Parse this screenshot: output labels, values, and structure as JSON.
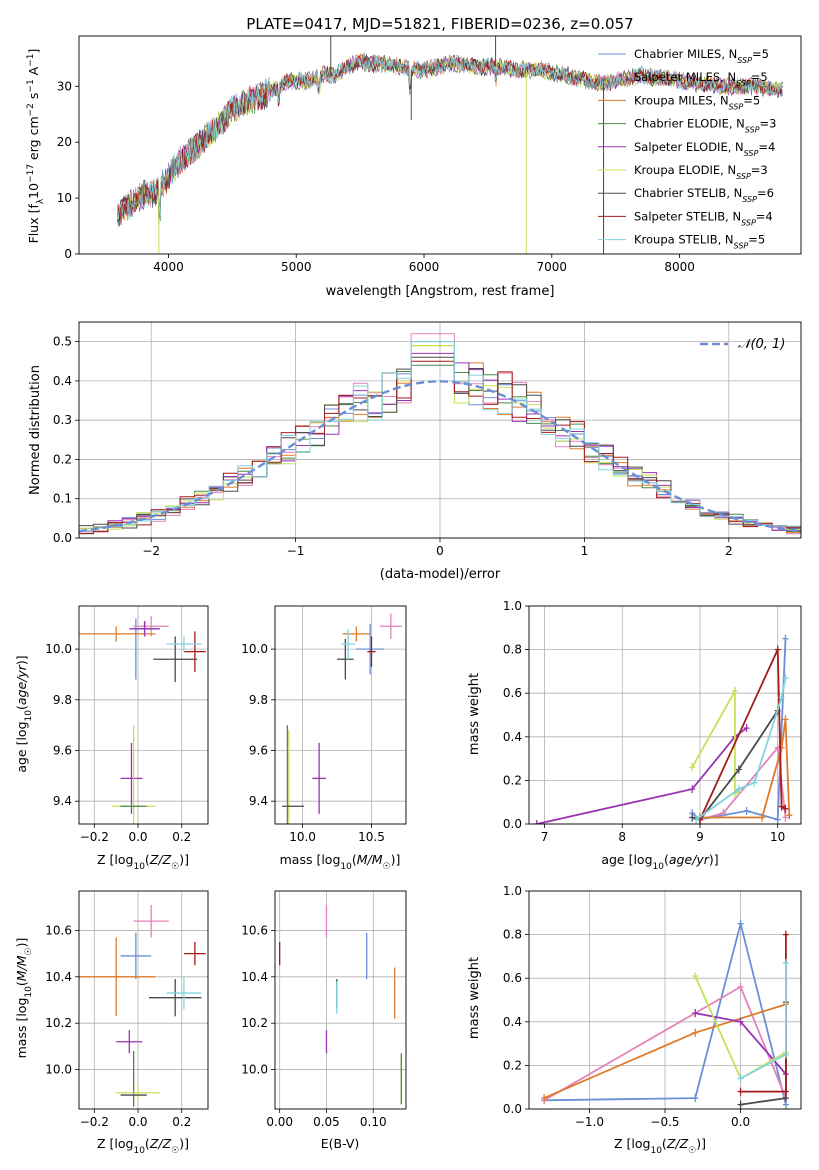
{
  "chart_data": [
    {
      "id": "spectrum",
      "type": "line",
      "title": "PLATE=0417, MJD=51821, FIBERID=0236, z=0.057",
      "xlabel": "wavelength [Angstrom, rest frame]",
      "ylabel": "Flux [f_λ10^-17 erg cm^-2 s^-1 A^-1]",
      "xlim": [
        3300,
        8950
      ],
      "ylim": [
        0,
        39
      ],
      "xticks": [
        4000,
        5000,
        6000,
        7000,
        8000
      ],
      "yticks": [
        0,
        10,
        20,
        30
      ],
      "grid": false,
      "legend_position": "top-right",
      "continuum_wavelengths": [
        3600,
        3700,
        3800,
        3900,
        4000,
        4100,
        4200,
        4300,
        4400,
        4500,
        4600,
        4700,
        4800,
        4900,
        5000,
        5100,
        5200,
        5300,
        5400,
        5500,
        5600,
        5700,
        5800,
        5900,
        6000,
        6100,
        6200,
        6300,
        6400,
        6500,
        6600,
        6700,
        6800,
        6900,
        7000,
        7100,
        7200,
        7300,
        7400,
        7500,
        7600,
        7700,
        7800,
        7900,
        8000,
        8100,
        8200,
        8300,
        8400,
        8500,
        8600,
        8700,
        8800
      ],
      "continuum_flux": [
        7,
        9,
        10.5,
        11,
        14,
        17,
        19,
        21,
        23,
        26,
        27,
        28,
        29,
        30.5,
        31,
        31,
        32,
        32,
        33.5,
        34.5,
        34,
        34,
        33.5,
        33,
        33,
        33.5,
        34,
        34,
        33.5,
        33.5,
        33.5,
        33,
        33,
        33,
        32.5,
        32,
        31.5,
        31,
        30.5,
        31,
        31.5,
        32,
        31.5,
        31.5,
        31,
        30.5,
        30.5,
        30,
        30,
        30,
        30,
        29.5,
        29.5
      ],
      "series": [
        {
          "name": "Chabrier MILES, N_SSP=5",
          "label_main": "Chabrier MILES, N",
          "label_sub": "SSP",
          "label_tail": "=5",
          "color": "#6a8fd6"
        },
        {
          "name": "Salpeter MILES, N_SSP=5",
          "label_main": "Salpeter MILES, N",
          "label_sub": "SSP",
          "label_tail": "=5",
          "color": "#e382bb"
        },
        {
          "name": "Kroupa MILES, N_SSP=5",
          "label_main": "Kroupa MILES, N",
          "label_sub": "SSP",
          "label_tail": "=5",
          "color": "#de7a2a"
        },
        {
          "name": "Chabrier ELODIE, N_SSP=3",
          "label_main": "Chabrier ELODIE, N",
          "label_sub": "SSP",
          "label_tail": "=3",
          "color": "#4a8a4a"
        },
        {
          "name": "Salpeter ELODIE, N_SSP=4",
          "label_main": "Salpeter ELODIE, N",
          "label_sub": "SSP",
          "label_tail": "=4",
          "color": "#9a34b6"
        },
        {
          "name": "Kroupa ELODIE, N_SSP=3",
          "label_main": "Kroupa ELODIE, N",
          "label_sub": "SSP",
          "label_tail": "=3",
          "color": "#c8e05a"
        },
        {
          "name": "Chabrier STELIB, N_SSP=6",
          "label_main": "Chabrier STELIB, N",
          "label_sub": "SSP",
          "label_tail": "=6",
          "color": "#4a4a4a"
        },
        {
          "name": "Salpeter STELIB, N_SSP=4",
          "label_main": "Salpeter STELIB, N",
          "label_sub": "SSP",
          "label_tail": "=4",
          "color": "#a31b1b"
        },
        {
          "name": "Kroupa STELIB, N_SSP=5",
          "label_main": "Kroupa STELIB, N",
          "label_sub": "SSP",
          "label_tail": "=5",
          "color": "#83d4dd"
        }
      ]
    },
    {
      "id": "residuals",
      "type": "histogram",
      "xlabel": "(data-model)/error",
      "ylabel": "Normed distribution",
      "xlim": [
        -2.5,
        2.5
      ],
      "ylim": [
        0,
        0.55
      ],
      "xticks": [
        -2,
        -1,
        0,
        1,
        2
      ],
      "yticks": [
        0.0,
        0.1,
        0.2,
        0.3,
        0.4,
        0.5
      ],
      "grid": true,
      "legend_position": "top-right",
      "bins": 50,
      "reference_curve": {
        "name": "N(0,1)",
        "label_math": "𝒩(0, 1)",
        "color": "#6a8fd6",
        "dash": true,
        "mean": 0,
        "sigma": 1
      },
      "peak_values": [
        0.5,
        0.52,
        0.49,
        0.44,
        0.47,
        0.49,
        0.46,
        0.45,
        0.5
      ]
    },
    {
      "id": "age_vs_Z",
      "type": "scatter",
      "xlabel": "Z [log10(Z/Z☉)]",
      "ylabel": "age [log10(age/yr)]",
      "xlim": [
        -0.27,
        0.32
      ],
      "ylim": [
        9.31,
        10.17
      ],
      "xticks": [
        -0.2,
        0.0,
        0.2
      ],
      "yticks": [
        9.4,
        9.6,
        9.8,
        10.0
      ],
      "grid": true,
      "points": [
        {
          "color": "#6a8fd6",
          "x": -0.01,
          "y": 10.0,
          "xerr": 0.0,
          "yerr": 0.12
        },
        {
          "color": "#e382bb",
          "x": 0.06,
          "y": 10.09,
          "xerr": 0.08,
          "yerr": 0.04
        },
        {
          "color": "#de7a2a",
          "x": -0.1,
          "y": 10.06,
          "xerr": 0.18,
          "yerr": 0.03
        },
        {
          "color": "#4a8a4a",
          "x": 0.03,
          "y": 10.08,
          "xerr": 0.05,
          "yerr": 0.03
        },
        {
          "color": "#9a34b6",
          "x": 0.03,
          "y": 10.08,
          "xerr": 0.07,
          "yerr": 0.03
        },
        {
          "color": "#9a34b6",
          "x": -0.03,
          "y": 9.49,
          "xerr": 0.05,
          "yerr": 0.14
        },
        {
          "color": "#c8e05a",
          "x": -0.02,
          "y": 9.38,
          "xerr": 0.1,
          "yerr": 0.32
        },
        {
          "color": "#4a4a4a",
          "x": 0.17,
          "y": 9.96,
          "xerr": 0.1,
          "yerr": 0.09
        },
        {
          "color": "#a31b1b",
          "x": 0.26,
          "y": 9.99,
          "xerr": 0.05,
          "yerr": 0.08
        },
        {
          "color": "#83d4dd",
          "x": 0.21,
          "y": 10.02,
          "xerr": 0.08,
          "yerr": 0.03
        },
        {
          "color": "#4a8a4a",
          "x": -0.02,
          "y": 9.38,
          "xerr": 0.06,
          "yerr": 0.0
        }
      ]
    },
    {
      "id": "age_vs_mass",
      "type": "scatter",
      "xlabel": "mass [log10(M/M☉)]",
      "ylabel": "",
      "xlim": [
        9.8,
        10.75
      ],
      "ylim": [
        9.31,
        10.17
      ],
      "xticks": [
        10.0,
        10.5
      ],
      "yticks": [
        9.4,
        9.6,
        9.8,
        10.0
      ],
      "grid": true,
      "points": [
        {
          "color": "#6a8fd6",
          "x": 10.49,
          "y": 10.0,
          "xerr": 0.1,
          "yerr": 0.1
        },
        {
          "color": "#e382bb",
          "x": 10.64,
          "y": 10.09,
          "xerr": 0.08,
          "yerr": 0.05
        },
        {
          "color": "#de7a2a",
          "x": 10.39,
          "y": 10.06,
          "xerr": 0.1,
          "yerr": 0.03
        },
        {
          "color": "#4a8a4a",
          "x": 9.89,
          "y": 9.38,
          "xerr": 0.0,
          "yerr": 0.32
        },
        {
          "color": "#9a34b6",
          "x": 10.12,
          "y": 9.49,
          "xerr": 0.05,
          "yerr": 0.14
        },
        {
          "color": "#c8e05a",
          "x": 9.9,
          "y": 9.38,
          "xerr": 0.02,
          "yerr": 0.3
        },
        {
          "color": "#4a4a4a",
          "x": 10.31,
          "y": 9.96,
          "xerr": 0.06,
          "yerr": 0.08
        },
        {
          "color": "#a31b1b",
          "x": 10.5,
          "y": 9.99,
          "xerr": 0.03,
          "yerr": 0.06
        },
        {
          "color": "#83d4dd",
          "x": 10.33,
          "y": 10.02,
          "xerr": 0.05,
          "yerr": 0.06
        },
        {
          "color": "#4a4a4a",
          "x": 9.93,
          "y": 9.38,
          "xerr": 0.08,
          "yerr": 0.0
        }
      ]
    },
    {
      "id": "mass_weight_vs_age",
      "type": "line",
      "xlabel": "age [log10(age/yr)]",
      "ylabel": "mass weight",
      "xlim": [
        6.8,
        10.3
      ],
      "ylim": [
        0.0,
        1.0
      ],
      "xticks": [
        7,
        8,
        9,
        10
      ],
      "yticks": [
        0.0,
        0.2,
        0.4,
        0.6,
        0.8,
        1.0
      ],
      "grid": true,
      "series": [
        {
          "color": "#6a8fd6",
          "x": [
            8.9,
            9.0,
            9.6,
            10.0,
            10.1
          ],
          "y": [
            0.05,
            0.02,
            0.06,
            0.02,
            0.85
          ]
        },
        {
          "color": "#e382bb",
          "x": [
            9.0,
            9.3,
            10.0,
            10.1
          ],
          "y": [
            0.02,
            0.05,
            0.35,
            0.03
          ]
        },
        {
          "color": "#de7a2a",
          "x": [
            9.0,
            9.8,
            10.05,
            10.1,
            10.15
          ],
          "y": [
            0.03,
            0.03,
            0.35,
            0.48,
            0.04
          ]
        },
        {
          "color": "#9a34b6",
          "x": [
            6.9,
            8.9,
            9.45,
            9.6
          ],
          "y": [
            0.0,
            0.16,
            0.4,
            0.44
          ]
        },
        {
          "color": "#c8e05a",
          "x": [
            8.9,
            9.45,
            9.45,
            9.5
          ],
          "y": [
            0.26,
            0.61,
            0.14,
            0.15
          ]
        },
        {
          "color": "#4a4a4a",
          "x": [
            8.9,
            9.0,
            9.5,
            10.0
          ],
          "y": [
            0.03,
            0.02,
            0.25,
            0.52
          ]
        },
        {
          "color": "#a31b1b",
          "x": [
            9.0,
            10.0,
            10.05,
            10.1
          ],
          "y": [
            0.02,
            0.8,
            0.08,
            0.07
          ]
        },
        {
          "color": "#83d4dd",
          "x": [
            8.95,
            9.5,
            9.7,
            10.05,
            10.1
          ],
          "y": [
            0.02,
            0.16,
            0.19,
            0.58,
            0.67
          ]
        }
      ]
    },
    {
      "id": "mass_vs_Z",
      "type": "scatter",
      "xlabel": "Z [log10(Z/Z☉)]",
      "ylabel": "mass [log10(M/M☉)]",
      "xlim": [
        -0.27,
        0.32
      ],
      "ylim": [
        9.83,
        10.77
      ],
      "xticks": [
        -0.2,
        0.0,
        0.2
      ],
      "yticks": [
        10.0,
        10.2,
        10.4,
        10.6
      ],
      "grid": true,
      "points": [
        {
          "color": "#6a8fd6",
          "x": -0.01,
          "y": 10.49,
          "xerr": 0.07,
          "yerr": 0.1
        },
        {
          "color": "#e382bb",
          "x": 0.06,
          "y": 10.64,
          "xerr": 0.08,
          "yerr": 0.07
        },
        {
          "color": "#de7a2a",
          "x": -0.1,
          "y": 10.4,
          "xerr": 0.18,
          "yerr": 0.17
        },
        {
          "color": "#9a34b6",
          "x": -0.04,
          "y": 10.12,
          "xerr": 0.06,
          "yerr": 0.05
        },
        {
          "color": "#4a8a4a",
          "x": -0.02,
          "y": 9.96,
          "xerr": 0.0,
          "yerr": 0.12
        },
        {
          "color": "#c8e05a",
          "x": 0.0,
          "y": 9.9,
          "xerr": 0.1,
          "yerr": 0.03
        },
        {
          "color": "#4a4a4a",
          "x": 0.17,
          "y": 10.31,
          "xerr": 0.12,
          "yerr": 0.08
        },
        {
          "color": "#a31b1b",
          "x": 0.26,
          "y": 10.5,
          "xerr": 0.05,
          "yerr": 0.05
        },
        {
          "color": "#83d4dd",
          "x": 0.21,
          "y": 10.33,
          "xerr": 0.08,
          "yerr": 0.07
        },
        {
          "color": "#4a4a4a",
          "x": -0.02,
          "y": 9.89,
          "xerr": 0.06,
          "yerr": 0.0
        }
      ]
    },
    {
      "id": "mass_vs_ebv",
      "type": "scatter",
      "xlabel": "E(B-V)",
      "ylabel": "",
      "xlim": [
        -0.005,
        0.135
      ],
      "ylim": [
        9.83,
        10.77
      ],
      "xticks": [
        0.0,
        0.05,
        0.1
      ],
      "xticklabels": [
        "0.00",
        "0.05",
        "0.10"
      ],
      "yticks": [
        10.0,
        10.2,
        10.4,
        10.6
      ],
      "grid": true,
      "points": [
        {
          "color": "#a31b1b",
          "x": 0.0,
          "y": 10.5,
          "xerr": 0.0,
          "yerr": 0.05
        },
        {
          "color": "#e382bb",
          "x": 0.05,
          "y": 10.64,
          "xerr": 0.0,
          "yerr": 0.07
        },
        {
          "color": "#9a34b6",
          "x": 0.05,
          "y": 10.12,
          "xerr": 0.0,
          "yerr": 0.05
        },
        {
          "color": "#4a4a4a",
          "x": 0.061,
          "y": 10.33,
          "xerr": 0.0,
          "yerr": 0.06
        },
        {
          "color": "#83d4dd",
          "x": 0.061,
          "y": 10.31,
          "xerr": 0.0,
          "yerr": 0.07
        },
        {
          "color": "#6a8fd6",
          "x": 0.093,
          "y": 10.49,
          "xerr": 0.0,
          "yerr": 0.1
        },
        {
          "color": "#de7a2a",
          "x": 0.123,
          "y": 10.33,
          "xerr": 0.0,
          "yerr": 0.11
        },
        {
          "color": "#c8e05a",
          "x": 0.13,
          "y": 9.96,
          "xerr": 0.0,
          "yerr": 0.1
        },
        {
          "color": "#4a8a4a",
          "x": 0.13,
          "y": 9.96,
          "xerr": 0.0,
          "yerr": 0.11
        }
      ]
    },
    {
      "id": "mass_weight_vs_Z",
      "type": "line",
      "xlabel": "Z [log10(Z/Z☉)]",
      "ylabel": "mass weight",
      "xlim": [
        -1.4,
        0.4
      ],
      "ylim": [
        0.0,
        1.0
      ],
      "xticks": [
        -1.0,
        -0.5,
        0.0
      ],
      "xticklabels": [
        "−1.0",
        "−0.5",
        "0.0"
      ],
      "yticks": [
        0.0,
        0.2,
        0.4,
        0.6,
        0.8,
        1.0
      ],
      "grid": true,
      "series": [
        {
          "color": "#6a8fd6",
          "x": [
            -1.3,
            -0.3,
            0.0,
            0.3
          ],
          "y": [
            0.04,
            0.05,
            0.85,
            0.02
          ]
        },
        {
          "color": "#e382bb",
          "x": [
            -1.3,
            -0.3,
            0.0,
            0.3
          ],
          "y": [
            0.04,
            0.44,
            0.56,
            0.05
          ]
        },
        {
          "color": "#de7a2a",
          "x": [
            -1.3,
            -0.3,
            0.3
          ],
          "y": [
            0.05,
            0.35,
            0.48
          ]
        },
        {
          "color": "#9a34b6",
          "x": [
            -0.3,
            0.0,
            0.3
          ],
          "y": [
            0.44,
            0.4,
            0.16
          ]
        },
        {
          "color": "#c8e05a",
          "x": [
            -0.3,
            0.0,
            0.3
          ],
          "y": [
            0.61,
            0.14,
            0.26
          ]
        },
        {
          "color": "#4a4a4a",
          "x": [
            0.0,
            0.3,
            0.3
          ],
          "y": [
            0.02,
            0.05,
            0.49
          ]
        },
        {
          "color": "#a31b1b",
          "x": [
            0.0,
            0.3,
            0.3
          ],
          "y": [
            0.08,
            0.08,
            0.8
          ]
        },
        {
          "color": "#83d4dd",
          "x": [
            0.0,
            0.3,
            0.3
          ],
          "y": [
            0.14,
            0.25,
            0.67
          ]
        }
      ]
    }
  ]
}
